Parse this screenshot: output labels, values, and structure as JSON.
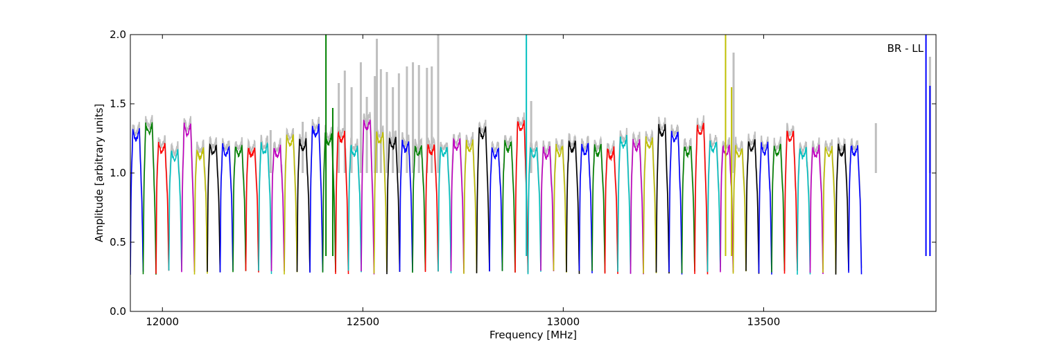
{
  "chart_data": {
    "type": "line",
    "title": "",
    "xlabel": "Frequency [MHz]",
    "ylabel": "Amplitude [arbitrary units]",
    "xlim": [
      11920,
      13930
    ],
    "ylim": [
      0,
      2.0
    ],
    "xticks": [
      12000,
      12500,
      13000,
      13500
    ],
    "yticks": [
      0.0,
      0.5,
      1.0,
      1.5,
      2.0
    ],
    "xtick_labels": [
      "12000",
      "12500",
      "13000",
      "13500"
    ],
    "ytick_labels": [
      "0.0",
      "0.5",
      "1.0",
      "1.5",
      "2.0"
    ],
    "annotation": "BR - LL",
    "grid": false,
    "channel_width_mhz": 32,
    "first_channel_start_mhz": 11920,
    "channel_colors": [
      "#0000ff",
      "#008000",
      "#ff0000",
      "#00bfbf",
      "#bf00bf",
      "#bfbf00",
      "#000000"
    ],
    "background_color": "#bfbfbf",
    "passband_peaks": [
      1.31,
      1.36,
      1.22,
      1.16,
      1.35,
      1.18,
      1.21,
      1.2,
      1.2,
      1.19,
      1.21,
      1.19,
      1.27,
      1.24,
      1.34,
      1.28,
      1.3,
      1.2,
      1.39,
      1.29,
      1.25,
      1.23,
      1.2,
      1.21,
      1.2,
      1.24,
      1.23,
      1.33,
      1.18,
      1.23,
      1.38,
      1.19,
      1.18,
      1.2,
      1.23,
      1.21,
      1.2,
      1.18,
      1.26,
      1.24,
      1.25,
      1.34,
      1.3,
      1.2,
      1.35,
      1.23,
      1.2,
      1.19,
      1.23,
      1.21,
      1.2,
      1.3,
      1.18,
      1.19,
      1.19,
      1.2,
      1.2
    ],
    "spikes": [
      {
        "x": 12408,
        "y": 2.0,
        "series": 1
      },
      {
        "x": 12425,
        "y": 1.47,
        "series": 1
      },
      {
        "x": 12908,
        "y": 2.0,
        "series": 3
      },
      {
        "x": 13405,
        "y": 2.0,
        "series": 5
      },
      {
        "x": 13420,
        "y": 1.62,
        "series": 5
      },
      {
        "x": 13905,
        "y": 2.0,
        "series": 0
      },
      {
        "x": 13915,
        "y": 1.63,
        "series": 0
      }
    ],
    "background_bursts": [
      {
        "x": 12440,
        "y": 1.65
      },
      {
        "x": 12455,
        "y": 1.74
      },
      {
        "x": 12472,
        "y": 1.62
      },
      {
        "x": 12495,
        "y": 1.8
      },
      {
        "x": 12510,
        "y": 1.55
      },
      {
        "x": 12530,
        "y": 1.7
      },
      {
        "x": 12545,
        "y": 1.75
      },
      {
        "x": 12560,
        "y": 1.73
      },
      {
        "x": 12575,
        "y": 1.62
      },
      {
        "x": 12590,
        "y": 1.72
      },
      {
        "x": 12610,
        "y": 1.77
      },
      {
        "x": 12625,
        "y": 1.8
      },
      {
        "x": 12640,
        "y": 1.78
      },
      {
        "x": 12660,
        "y": 1.76
      },
      {
        "x": 12672,
        "y": 1.77
      },
      {
        "x": 12688,
        "y": 2.0
      },
      {
        "x": 12535,
        "y": 1.97
      },
      {
        "x": 13425,
        "y": 1.87
      },
      {
        "x": 13780,
        "y": 1.36
      },
      {
        "x": 13915,
        "y": 1.84
      },
      {
        "x": 12920,
        "y": 1.52
      },
      {
        "x": 12270,
        "y": 1.31
      },
      {
        "x": 12350,
        "y": 1.37
      }
    ]
  }
}
